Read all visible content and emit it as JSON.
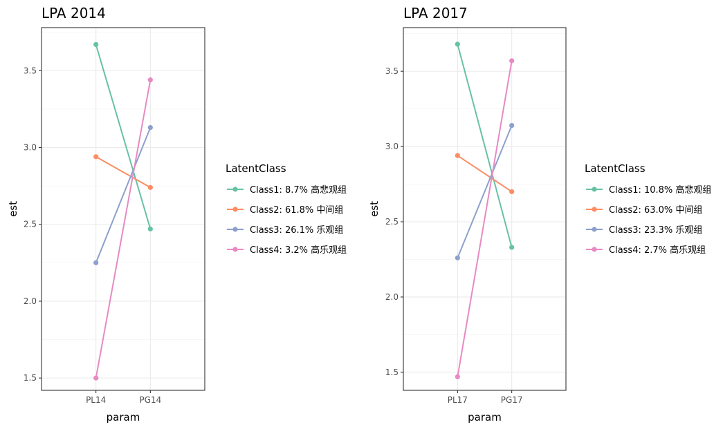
{
  "chart_data": [
    {
      "type": "line",
      "title": "LPA 2014",
      "xlabel": "param",
      "ylabel": "est",
      "categories": [
        "PL14",
        "PG14"
      ],
      "ylim": [
        1.42,
        3.78
      ],
      "yticks": [
        1.5,
        2.0,
        2.5,
        3.0,
        3.5
      ],
      "ytick_labels": [
        "1.5",
        "2.0",
        "2.5",
        "3.0",
        "3.5"
      ],
      "grid": true,
      "legend_title": "LatentClass",
      "legend_position": "right",
      "series": [
        {
          "name": "Class1: 8.7% 高悲观组",
          "values": [
            3.67,
            2.47
          ],
          "color": "#66c2a5"
        },
        {
          "name": "Class2: 61.8% 中间组",
          "values": [
            2.94,
            2.74
          ],
          "color": "#fc8d62"
        },
        {
          "name": "Class3: 26.1% 乐观组",
          "values": [
            2.25,
            3.13
          ],
          "color": "#8da0cb"
        },
        {
          "name": "Class4: 3.2% 高乐观组",
          "values": [
            1.5,
            3.44
          ],
          "color": "#e78ac3"
        }
      ]
    },
    {
      "type": "line",
      "title": "LPA 2017",
      "xlabel": "param",
      "ylabel": "est",
      "categories": [
        "PL17",
        "PG17"
      ],
      "ylim": [
        1.38,
        3.79
      ],
      "yticks": [
        1.5,
        2.0,
        2.5,
        3.0,
        3.5
      ],
      "ytick_labels": [
        "1.5",
        "2.0",
        "2.5",
        "3.0",
        "3.5"
      ],
      "grid": true,
      "legend_title": "LatentClass",
      "legend_position": "right",
      "series": [
        {
          "name": "Class1: 10.8% 高悲观组",
          "values": [
            3.68,
            2.33
          ],
          "color": "#66c2a5"
        },
        {
          "name": "Class2: 63.0% 中间组",
          "values": [
            2.94,
            2.7
          ],
          "color": "#fc8d62"
        },
        {
          "name": "Class3: 23.3% 乐观组",
          "values": [
            2.26,
            3.14
          ],
          "color": "#8da0cb"
        },
        {
          "name": "Class4: 2.7% 高乐观组",
          "values": [
            1.47,
            3.57
          ],
          "color": "#e78ac3"
        }
      ]
    }
  ]
}
